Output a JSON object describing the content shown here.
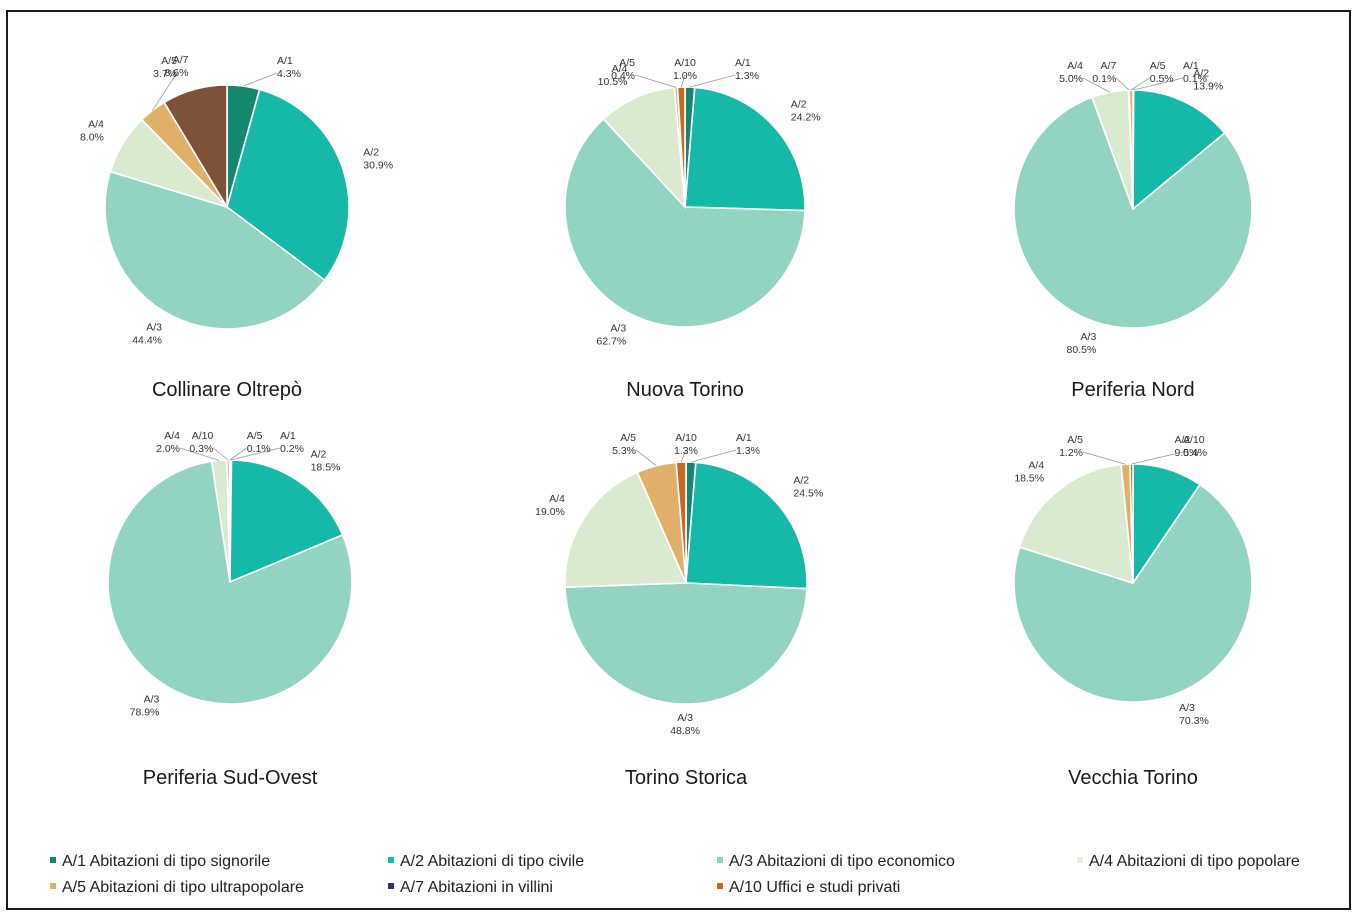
{
  "colors": {
    "A/1": "#16876f",
    "A/2": "#16b9a8",
    "A/3": "#93d3c1",
    "A/4": "#d9ead0",
    "A/5": "#e0b06a",
    "A/7": "#7e5238",
    "A/10": "#c46a22"
  },
  "legend": {
    "items": [
      {
        "code": "A/1",
        "label": "A/1 Abitazioni di tipo signorile",
        "color": "#16876f"
      },
      {
        "code": "A/2",
        "label": "A/2 Abitazioni di tipo civile",
        "color": "#16b9a8"
      },
      {
        "code": "A/3",
        "label": "A/3 Abitazioni di tipo economico",
        "color": "#93d3c1"
      },
      {
        "code": "A/4",
        "label": "A/4 Abitazioni di tipo popolare",
        "color": "#e6eee0"
      },
      {
        "code": "A/5",
        "label": "A/5 Abitazioni di tipo ultrapopolare",
        "color": "#e0b06a"
      },
      {
        "code": "A/7",
        "label": "A/7 Abitazioni in villini",
        "color": "#2b3a5a"
      },
      {
        "code": "A/10",
        "label": "A/10 Uffici e studi privati",
        "color": "#c46a22"
      }
    ]
  },
  "chart_data": [
    {
      "type": "pie",
      "title": "Collinare Oltrepò",
      "categories": [
        "A/1",
        "A/2",
        "A/3",
        "A/4",
        "A/5",
        "A/7"
      ],
      "values": [
        4.3,
        30.9,
        44.4,
        8.0,
        3.7,
        8.6
      ],
      "labels": [
        "4.3%",
        "30.9%",
        "44.4%",
        "8.0%",
        "3.7%",
        "8.6%"
      ]
    },
    {
      "type": "pie",
      "title": "Nuova Torino",
      "categories": [
        "A/1",
        "A/2",
        "A/3",
        "A/4",
        "A/5",
        "A/10"
      ],
      "values": [
        1.3,
        24.2,
        62.7,
        10.5,
        0.4,
        1.0
      ],
      "labels": [
        "1.3%",
        "24.2%",
        "62.7%",
        "10.5%",
        "0.4%",
        "1.0%"
      ]
    },
    {
      "type": "pie",
      "title": "Periferia Nord",
      "categories": [
        "A/1",
        "A/2",
        "A/3",
        "A/4",
        "A/7",
        "A/5"
      ],
      "values": [
        0.1,
        13.9,
        80.5,
        5.0,
        0.1,
        0.5
      ],
      "labels": [
        "0.1%",
        "13.9%",
        "80.5%",
        "5.0%",
        "0.1%",
        "0.5%"
      ]
    },
    {
      "type": "pie",
      "title": "Periferia Sud-Ovest",
      "categories": [
        "A/1",
        "A/2",
        "A/3",
        "A/4",
        "A/10",
        "A/5"
      ],
      "values": [
        0.2,
        18.5,
        78.9,
        2.0,
        0.3,
        0.1
      ],
      "labels": [
        "0.2%",
        "18.5%",
        "78.9%",
        "2.0%",
        "0.3%",
        "0.1%"
      ]
    },
    {
      "type": "pie",
      "title": "Torino Storica",
      "categories": [
        "A/1",
        "A/2",
        "A/3",
        "A/4",
        "A/5",
        "A/10"
      ],
      "values": [
        1.3,
        24.5,
        48.8,
        19.0,
        5.3,
        1.3
      ],
      "labels": [
        "1.3%",
        "24.5%",
        "48.8%",
        "19.0%",
        "5.3%",
        "1.3%"
      ]
    },
    {
      "type": "pie",
      "title": "Vecchia Torino",
      "categories": [
        "A/2",
        "A/3",
        "A/4",
        "A/5",
        "A/10"
      ],
      "values": [
        9.5,
        70.3,
        18.5,
        1.2,
        0.4
      ],
      "labels": [
        "9.5%",
        "70.3%",
        "18.5%",
        "1.2%",
        "0.4%"
      ]
    }
  ]
}
